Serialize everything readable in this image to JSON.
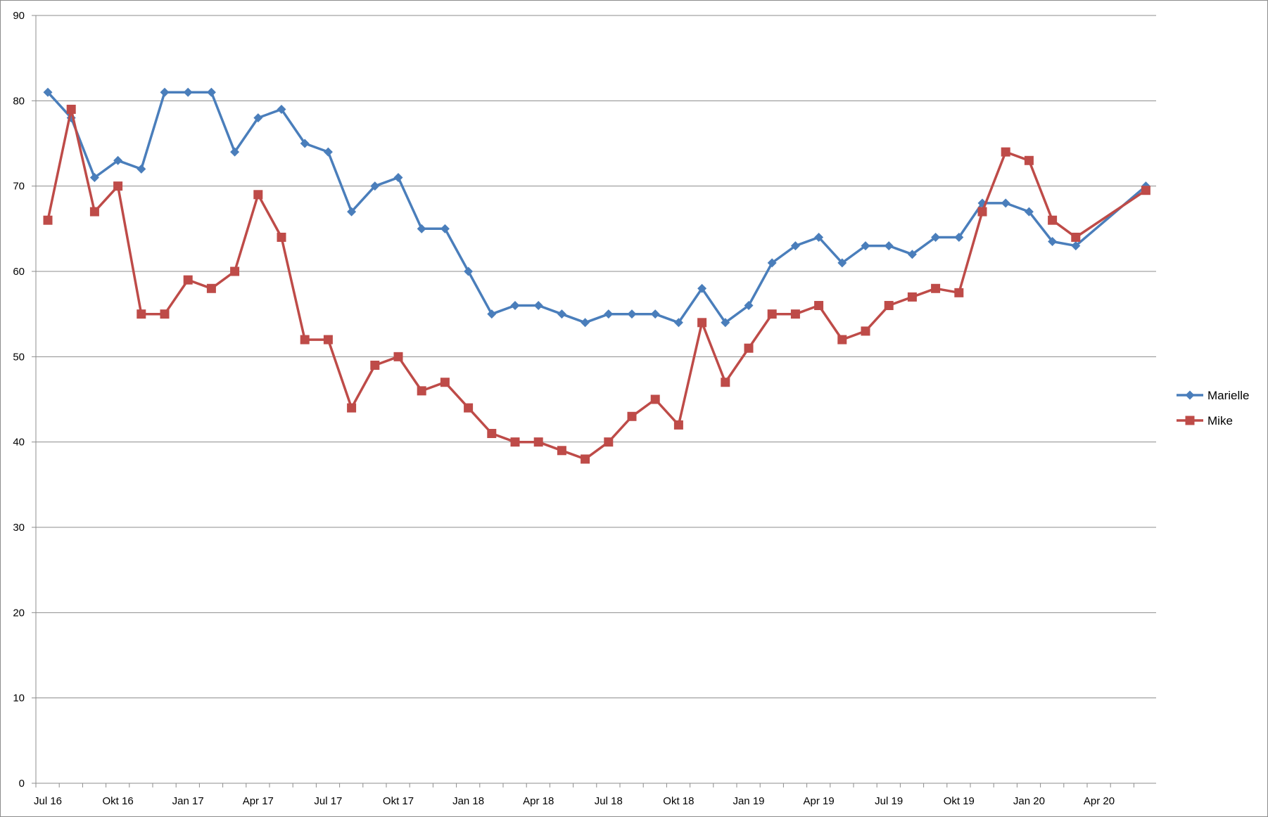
{
  "chart_data": {
    "type": "line",
    "title": "",
    "xlabel": "",
    "ylabel": "",
    "ylim": [
      0,
      90
    ],
    "y_ticks": [
      0,
      10,
      20,
      30,
      40,
      50,
      60,
      70,
      80,
      90
    ],
    "grid": true,
    "legend_position": "right",
    "x_tick_labels": [
      "Jul 16",
      "Okt 16",
      "Jan 17",
      "Apr 17",
      "Jul 17",
      "Okt 17",
      "Jan 18",
      "Apr 18",
      "Jul 18",
      "Okt 18",
      "Jan 19",
      "Apr 19",
      "Jul 19",
      "Okt 19",
      "Jan 20",
      "Apr 20"
    ],
    "x": [
      "2016-07",
      "2016-08",
      "2016-09",
      "2016-10",
      "2016-11",
      "2016-12",
      "2017-01",
      "2017-02",
      "2017-03",
      "2017-04",
      "2017-05",
      "2017-06",
      "2017-07",
      "2017-08",
      "2017-09",
      "2017-10",
      "2017-11",
      "2017-12",
      "2018-01",
      "2018-02",
      "2018-03",
      "2018-04",
      "2018-05",
      "2018-06",
      "2018-07",
      "2018-08",
      "2018-09",
      "2018-10",
      "2018-11",
      "2018-12",
      "2019-01",
      "2019-02",
      "2019-03",
      "2019-04",
      "2019-05",
      "2019-06",
      "2019-07",
      "2019-08",
      "2019-09",
      "2019-10",
      "2019-11",
      "2019-12",
      "2020-01",
      "2020-02",
      "2020-03",
      "2020-06"
    ],
    "series": [
      {
        "name": "Marielle",
        "color": "#4a7ebb",
        "marker": "diamond",
        "values": [
          81,
          78,
          71,
          73,
          72,
          81,
          81,
          81,
          74,
          78,
          79,
          75,
          74,
          67,
          70,
          71,
          65,
          65,
          60,
          55,
          56,
          56,
          55,
          54,
          55,
          55,
          55,
          54,
          58,
          54,
          56,
          61,
          63,
          64,
          61,
          63,
          63,
          62,
          64,
          64,
          68,
          68,
          67,
          63.5,
          63,
          70
        ]
      },
      {
        "name": "Mike",
        "color": "#be4b48",
        "marker": "square",
        "values": [
          66,
          79,
          67,
          70,
          55,
          55,
          59,
          58,
          60,
          69,
          64,
          52,
          52,
          44,
          49,
          50,
          46,
          47,
          44,
          41,
          40,
          40,
          39,
          38,
          40,
          43,
          45,
          42,
          54,
          47,
          51,
          55,
          55,
          56,
          52,
          53,
          56,
          57,
          58,
          57.5,
          67,
          74,
          73,
          66,
          64,
          69.5
        ]
      }
    ]
  }
}
